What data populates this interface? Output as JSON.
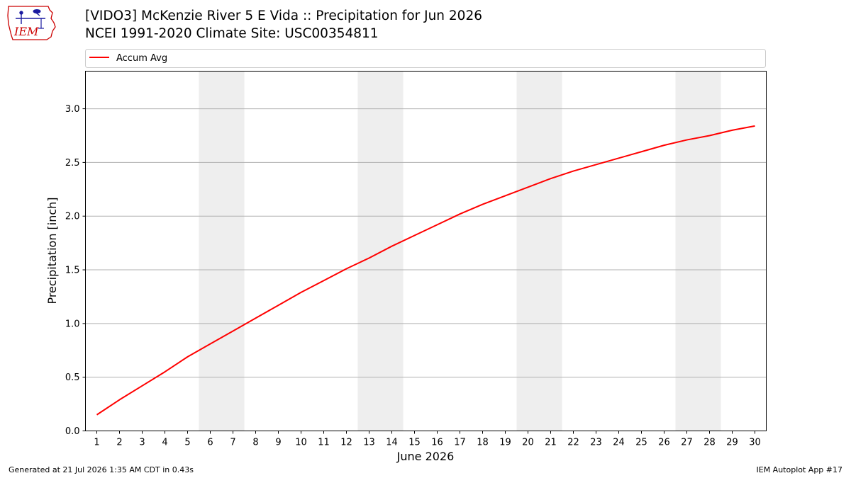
{
  "header": {
    "title_line1": "[VIDO3] McKenzie River 5 E Vida :: Precipitation for Jun 2026",
    "title_line2": "NCEI 1991-2020 Climate Site: USC00354811"
  },
  "logo": {
    "text": "IEM",
    "icon": "iem-iowa-logo"
  },
  "footer": {
    "generated": "Generated at 21 Jul 2026 1:35 AM CDT in 0.43s",
    "app": "IEM Autoplot App #17"
  },
  "colors": {
    "line": "#ff0000",
    "weekend_band": "#eeeeee",
    "grid": "#b0b0b0",
    "logo": "#cc0000"
  },
  "chart_data": {
    "type": "line",
    "xlabel": "June 2026",
    "ylabel": "Precipitation [inch]",
    "x": [
      1,
      2,
      3,
      4,
      5,
      6,
      7,
      8,
      9,
      10,
      11,
      12,
      13,
      14,
      15,
      16,
      17,
      18,
      19,
      20,
      21,
      22,
      23,
      24,
      25,
      26,
      27,
      28,
      29,
      30
    ],
    "xticks": [
      "1",
      "2",
      "3",
      "4",
      "5",
      "6",
      "7",
      "8",
      "9",
      "10",
      "11",
      "12",
      "13",
      "14",
      "15",
      "16",
      "17",
      "18",
      "19",
      "20",
      "21",
      "22",
      "23",
      "24",
      "25",
      "26",
      "27",
      "28",
      "29",
      "30"
    ],
    "xlim": [
      0.5,
      30.5
    ],
    "ylim": [
      0,
      3.35
    ],
    "yticks": [
      "0.0",
      "0.5",
      "1.0",
      "1.5",
      "2.0",
      "2.5",
      "3.0"
    ],
    "grid": "horizontal",
    "legend_position": "top-left",
    "weekend_bands": [
      [
        6,
        7
      ],
      [
        13,
        14
      ],
      [
        20,
        21
      ],
      [
        27,
        28
      ]
    ],
    "series": [
      {
        "name": "Accum Avg",
        "color": "#ff0000",
        "values": [
          0.15,
          0.29,
          0.42,
          0.55,
          0.69,
          0.81,
          0.93,
          1.05,
          1.17,
          1.29,
          1.4,
          1.51,
          1.61,
          1.72,
          1.82,
          1.92,
          2.02,
          2.11,
          2.19,
          2.27,
          2.35,
          2.42,
          2.48,
          2.54,
          2.6,
          2.66,
          2.71,
          2.75,
          2.8,
          2.84
        ]
      }
    ]
  }
}
